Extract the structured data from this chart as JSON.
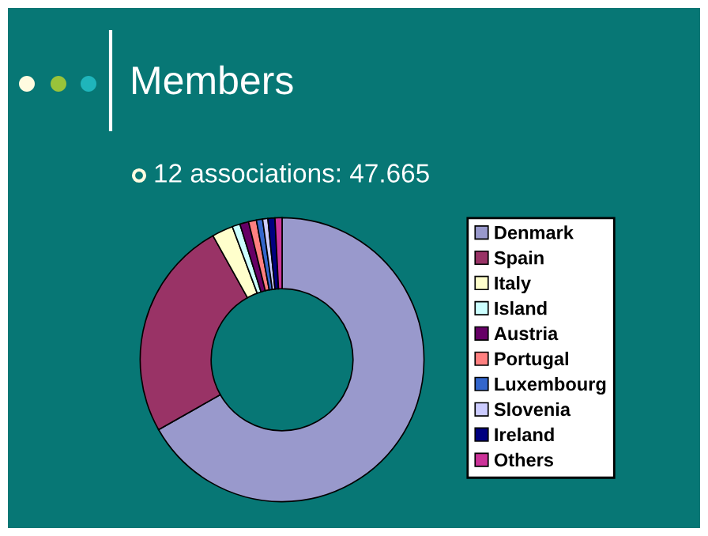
{
  "chart_data": {
    "type": "donut",
    "title": "Members",
    "subtitle": "12 associations: 47.665",
    "categories": [
      "Denmark",
      "Spain",
      "Italy",
      "Island",
      "Austria",
      "Portugal",
      "Luxembourg",
      "Slovenia",
      "Ireland",
      "Others"
    ],
    "values": [
      66.8,
      25.1,
      2.4,
      0.9,
      1.0,
      0.9,
      0.7,
      0.6,
      0.8,
      0.8
    ],
    "colors": [
      "#9999cc",
      "#993366",
      "#ffffcc",
      "#ccffff",
      "#660066",
      "#ff8080",
      "#3366cc",
      "#ccccff",
      "#000080",
      "#cc3399"
    ],
    "legend": "right"
  }
}
